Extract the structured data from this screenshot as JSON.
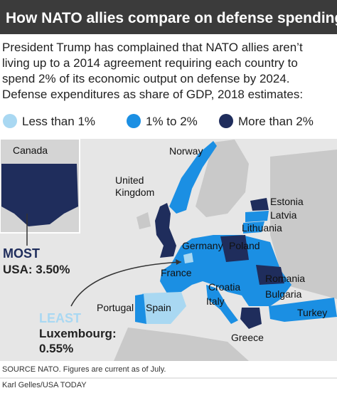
{
  "header": {
    "title": "How NATO allies compare on defense spending"
  },
  "intro": {
    "lines": [
      "President Trump has complained that NATO allies aren’t",
      "living up to a 2014 agreement requiring each country to",
      "spend 2% of its economic output on defense by 2024.",
      "Defense expenditures as share of GDP, 2018 estimates:"
    ]
  },
  "legend": [
    {
      "label": "Less than 1%",
      "color": "#a9d8f2"
    },
    {
      "label": "1% to 2%",
      "color": "#1b8fe3"
    },
    {
      "label": "More than 2%",
      "color": "#1f2d5c"
    }
  ],
  "map": {
    "labels": {
      "canada": "Canada",
      "norway": "Norway",
      "uk": [
        "United",
        "Kingdom"
      ],
      "estonia": "Estonia",
      "latvia": "Latvia",
      "lithuania": "Lithuania",
      "germany": "Germany",
      "poland": "Poland",
      "france": "France",
      "romania": "Romania",
      "croatia": "Croatia",
      "bulgaria": "Bulgaria",
      "italy": "Italy",
      "portugal": "Portugal",
      "spain": "Spain",
      "turkey": "Turkey",
      "greece": "Greece"
    },
    "most": {
      "heading": "MOST",
      "text": "USA: 3.50%"
    },
    "least": {
      "heading": "LEAST",
      "lines": [
        "Luxembourg:",
        "0.55%"
      ]
    }
  },
  "footer": {
    "source": "SOURCE NATO. Figures are current as of July.",
    "credit": "Karl Gelles/USA TODAY"
  }
}
